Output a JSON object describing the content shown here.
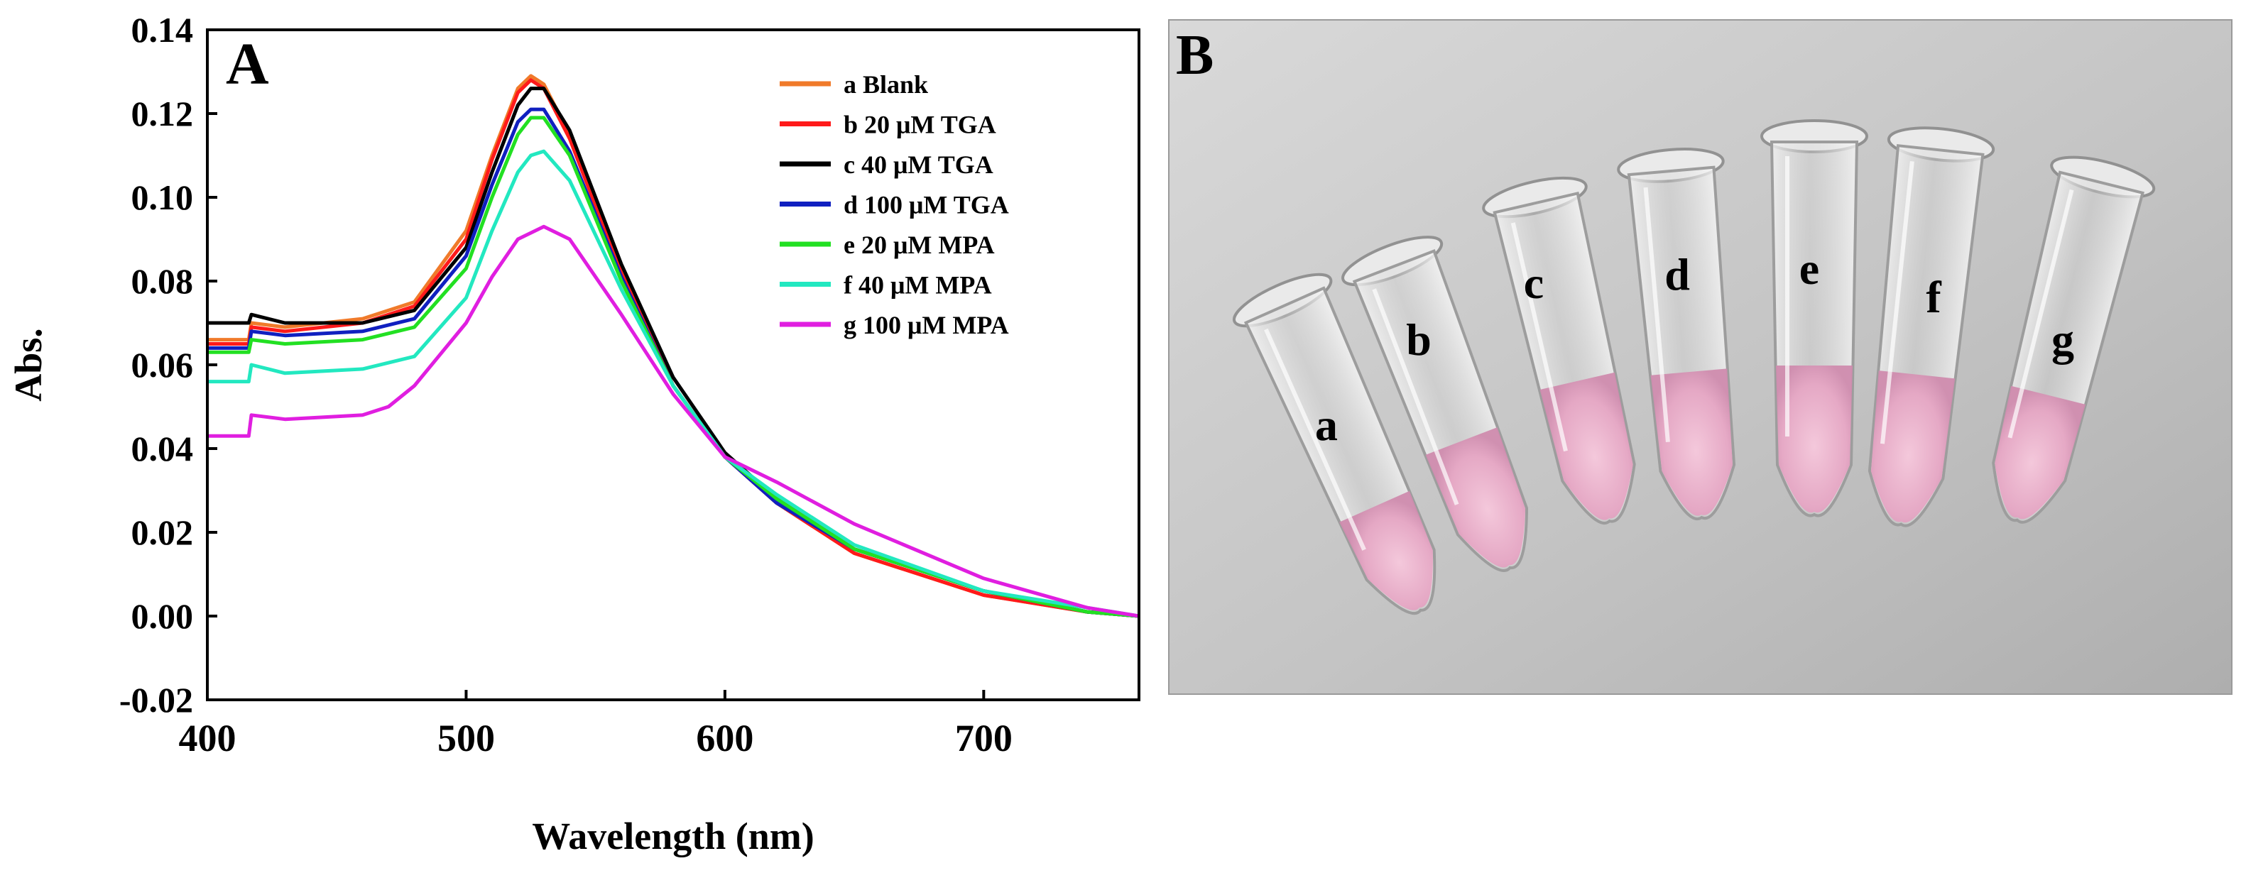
{
  "chart_data": {
    "type": "line",
    "panel_label": "A",
    "title": "",
    "xlabel": "Wavelength (nm)",
    "ylabel": "Abs.",
    "xlim": [
      400,
      760
    ],
    "ylim": [
      -0.02,
      0.14
    ],
    "xticks": [
      400,
      500,
      600,
      700
    ],
    "xtick_labels": [
      "400",
      "500",
      "600",
      "700"
    ],
    "yticks": [
      -0.02,
      0.0,
      0.02,
      0.04,
      0.06,
      0.08,
      0.1,
      0.12,
      0.14
    ],
    "ytick_labels": [
      "-0.02",
      "0.00",
      "0.02",
      "0.04",
      "0.06",
      "0.08",
      "0.10",
      "0.12",
      "0.14"
    ],
    "grid": false,
    "legend_position": "top-right",
    "series": [
      {
        "name": "a Blank",
        "color": "#f07a2a",
        "x": [
          400,
          416,
          417,
          430,
          460,
          480,
          500,
          510,
          520,
          525,
          530,
          540,
          560,
          580,
          600,
          620,
          650,
          700,
          740,
          760
        ],
        "values": [
          0.066,
          0.066,
          0.07,
          0.069,
          0.071,
          0.075,
          0.092,
          0.11,
          0.126,
          0.129,
          0.127,
          0.115,
          0.082,
          0.055,
          0.038,
          0.027,
          0.015,
          0.005,
          0.001,
          0.0
        ]
      },
      {
        "name": "b 20 μM TGA",
        "color": "#ff1a1a",
        "x": [
          400,
          416,
          417,
          430,
          460,
          480,
          500,
          510,
          520,
          525,
          530,
          540,
          560,
          580,
          600,
          620,
          650,
          700,
          740,
          760
        ],
        "values": [
          0.065,
          0.065,
          0.069,
          0.068,
          0.07,
          0.074,
          0.09,
          0.109,
          0.125,
          0.128,
          0.126,
          0.114,
          0.082,
          0.055,
          0.038,
          0.027,
          0.015,
          0.005,
          0.001,
          0.0
        ]
      },
      {
        "name": "c 40 μM TGA",
        "color": "#000000",
        "x": [
          400,
          416,
          417,
          430,
          460,
          480,
          500,
          510,
          520,
          525,
          530,
          540,
          560,
          580,
          600,
          620,
          650,
          700,
          740,
          760
        ],
        "values": [
          0.07,
          0.07,
          0.072,
          0.07,
          0.07,
          0.073,
          0.088,
          0.106,
          0.122,
          0.126,
          0.126,
          0.116,
          0.084,
          0.057,
          0.039,
          0.028,
          0.016,
          0.006,
          0.001,
          0.0
        ]
      },
      {
        "name": "d 100 μM TGA",
        "color": "#1020c0",
        "x": [
          400,
          416,
          417,
          430,
          460,
          480,
          500,
          510,
          520,
          525,
          530,
          540,
          560,
          580,
          600,
          620,
          650,
          700,
          740,
          760
        ],
        "values": [
          0.064,
          0.064,
          0.068,
          0.067,
          0.068,
          0.071,
          0.086,
          0.103,
          0.118,
          0.121,
          0.121,
          0.111,
          0.081,
          0.055,
          0.038,
          0.027,
          0.016,
          0.006,
          0.001,
          0.0
        ]
      },
      {
        "name": "e 20 μM MPA",
        "color": "#22e022",
        "x": [
          400,
          416,
          417,
          430,
          460,
          480,
          500,
          510,
          520,
          525,
          530,
          540,
          560,
          580,
          600,
          620,
          650,
          700,
          740,
          760
        ],
        "values": [
          0.063,
          0.063,
          0.066,
          0.065,
          0.066,
          0.069,
          0.083,
          0.1,
          0.115,
          0.119,
          0.119,
          0.11,
          0.08,
          0.055,
          0.038,
          0.028,
          0.016,
          0.006,
          0.001,
          0.0
        ]
      },
      {
        "name": "f 40 μM MPA",
        "color": "#22e8c0",
        "x": [
          400,
          416,
          417,
          430,
          460,
          480,
          500,
          510,
          520,
          525,
          530,
          540,
          560,
          580,
          600,
          620,
          650,
          700,
          740,
          760
        ],
        "values": [
          0.056,
          0.056,
          0.06,
          0.058,
          0.059,
          0.062,
          0.076,
          0.092,
          0.106,
          0.11,
          0.111,
          0.104,
          0.078,
          0.055,
          0.038,
          0.029,
          0.017,
          0.006,
          0.002,
          0.0
        ]
      },
      {
        "name": "g 100 μM MPA",
        "color": "#e01ee0",
        "x": [
          400,
          416,
          417,
          430,
          460,
          470,
          480,
          500,
          510,
          520,
          530,
          540,
          560,
          580,
          600,
          620,
          650,
          700,
          740,
          760
        ],
        "values": [
          0.043,
          0.043,
          0.048,
          0.047,
          0.048,
          0.05,
          0.055,
          0.07,
          0.081,
          0.09,
          0.093,
          0.09,
          0.072,
          0.053,
          0.038,
          0.032,
          0.022,
          0.009,
          0.002,
          0.0
        ]
      }
    ]
  },
  "photo": {
    "panel_label": "B",
    "tube_labels": [
      "a",
      "b",
      "c",
      "d",
      "e",
      "f",
      "g"
    ]
  }
}
